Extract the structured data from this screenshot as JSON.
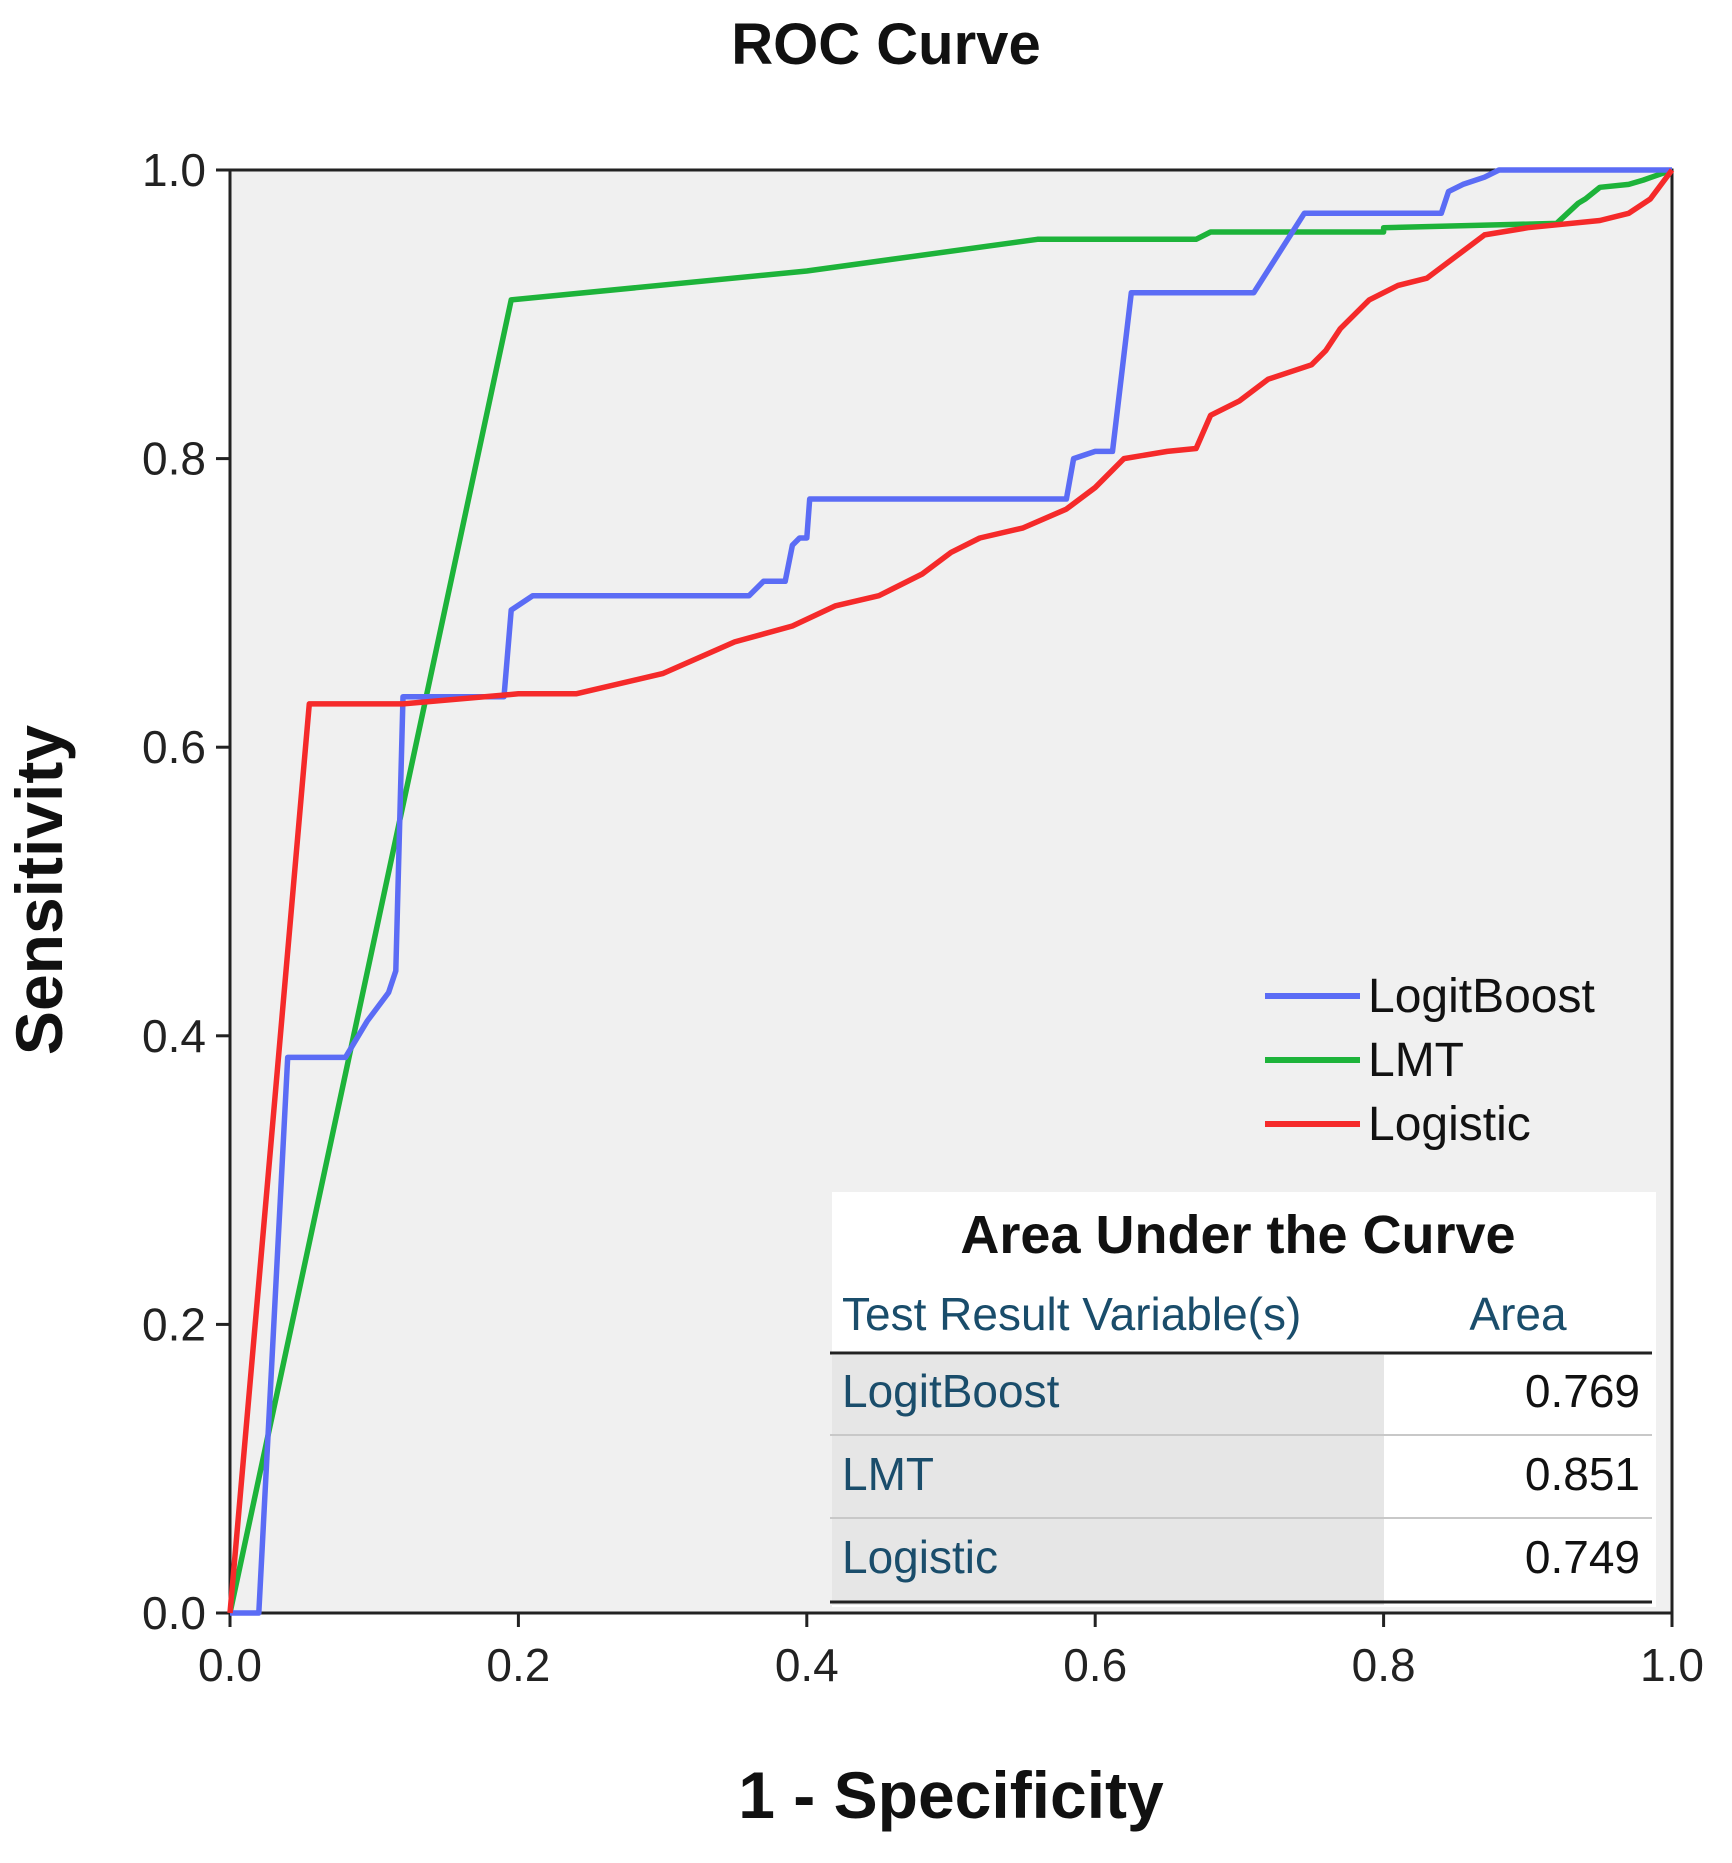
{
  "chart_data": {
    "type": "line",
    "title": "ROC Curve",
    "xlabel": "1 - Specificity",
    "ylabel": "Sensitivity",
    "xlim": [
      0,
      1
    ],
    "ylim": [
      0,
      1
    ],
    "xticks": [
      "0.0",
      "0.2",
      "0.4",
      "0.6",
      "0.8",
      "1.0"
    ],
    "yticks": [
      "0.0",
      "0.2",
      "0.4",
      "0.6",
      "0.8",
      "1.0"
    ],
    "legend_position": "right",
    "series": [
      {
        "name": "LogitBoost",
        "color": "#5b6cf5",
        "points": [
          [
            0,
            0
          ],
          [
            0.02,
            0
          ],
          [
            0.04,
            0.385
          ],
          [
            0.08,
            0.385
          ],
          [
            0.095,
            0.41
          ],
          [
            0.11,
            0.43
          ],
          [
            0.115,
            0.445
          ],
          [
            0.12,
            0.635
          ],
          [
            0.19,
            0.635
          ],
          [
            0.195,
            0.695
          ],
          [
            0.21,
            0.705
          ],
          [
            0.36,
            0.705
          ],
          [
            0.37,
            0.715
          ],
          [
            0.385,
            0.715
          ],
          [
            0.39,
            0.74
          ],
          [
            0.395,
            0.745
          ],
          [
            0.4,
            0.745
          ],
          [
            0.402,
            0.772
          ],
          [
            0.58,
            0.772
          ],
          [
            0.585,
            0.8
          ],
          [
            0.6,
            0.805
          ],
          [
            0.612,
            0.805
          ],
          [
            0.625,
            0.915
          ],
          [
            0.71,
            0.915
          ],
          [
            0.745,
            0.97
          ],
          [
            0.84,
            0.97
          ],
          [
            0.845,
            0.985
          ],
          [
            0.855,
            0.99
          ],
          [
            0.87,
            0.995
          ],
          [
            0.88,
            1.0
          ],
          [
            1.0,
            1.0
          ]
        ]
      },
      {
        "name": "LMT",
        "color": "#1db33a",
        "points": [
          [
            0,
            0
          ],
          [
            0.195,
            0.91
          ],
          [
            0.4,
            0.93
          ],
          [
            0.56,
            0.952
          ],
          [
            0.67,
            0.952
          ],
          [
            0.68,
            0.957
          ],
          [
            0.8,
            0.957
          ],
          [
            0.8,
            0.96
          ],
          [
            0.92,
            0.963
          ],
          [
            0.935,
            0.977
          ],
          [
            0.94,
            0.98
          ],
          [
            0.95,
            0.988
          ],
          [
            0.97,
            0.99
          ],
          [
            0.98,
            0.993
          ],
          [
            1.0,
            1.0
          ]
        ]
      },
      {
        "name": "Logistic",
        "color": "#f52a2a",
        "points": [
          [
            0,
            0
          ],
          [
            0.055,
            0.63
          ],
          [
            0.12,
            0.63
          ],
          [
            0.2,
            0.637
          ],
          [
            0.24,
            0.637
          ],
          [
            0.3,
            0.651
          ],
          [
            0.35,
            0.673
          ],
          [
            0.39,
            0.684
          ],
          [
            0.42,
            0.698
          ],
          [
            0.45,
            0.705
          ],
          [
            0.48,
            0.72
          ],
          [
            0.5,
            0.735
          ],
          [
            0.52,
            0.745
          ],
          [
            0.55,
            0.752
          ],
          [
            0.58,
            0.765
          ],
          [
            0.6,
            0.78
          ],
          [
            0.62,
            0.8
          ],
          [
            0.65,
            0.805
          ],
          [
            0.67,
            0.807
          ],
          [
            0.68,
            0.83
          ],
          [
            0.7,
            0.84
          ],
          [
            0.72,
            0.855
          ],
          [
            0.75,
            0.865
          ],
          [
            0.76,
            0.875
          ],
          [
            0.77,
            0.89
          ],
          [
            0.79,
            0.91
          ],
          [
            0.81,
            0.92
          ],
          [
            0.83,
            0.925
          ],
          [
            0.85,
            0.94
          ],
          [
            0.87,
            0.955
          ],
          [
            0.9,
            0.96
          ],
          [
            0.95,
            0.965
          ],
          [
            0.97,
            0.97
          ],
          [
            0.985,
            0.98
          ],
          [
            1.0,
            1.0
          ]
        ]
      }
    ],
    "auc_table": {
      "title": "Area Under the Curve",
      "col_variable": "Test Result Variable(s)",
      "col_area": "Area",
      "rows": [
        {
          "variable": "LogitBoost",
          "area": "0.769"
        },
        {
          "variable": "LMT",
          "area": "0.851"
        },
        {
          "variable": "Logistic",
          "area": "0.749"
        }
      ]
    }
  }
}
